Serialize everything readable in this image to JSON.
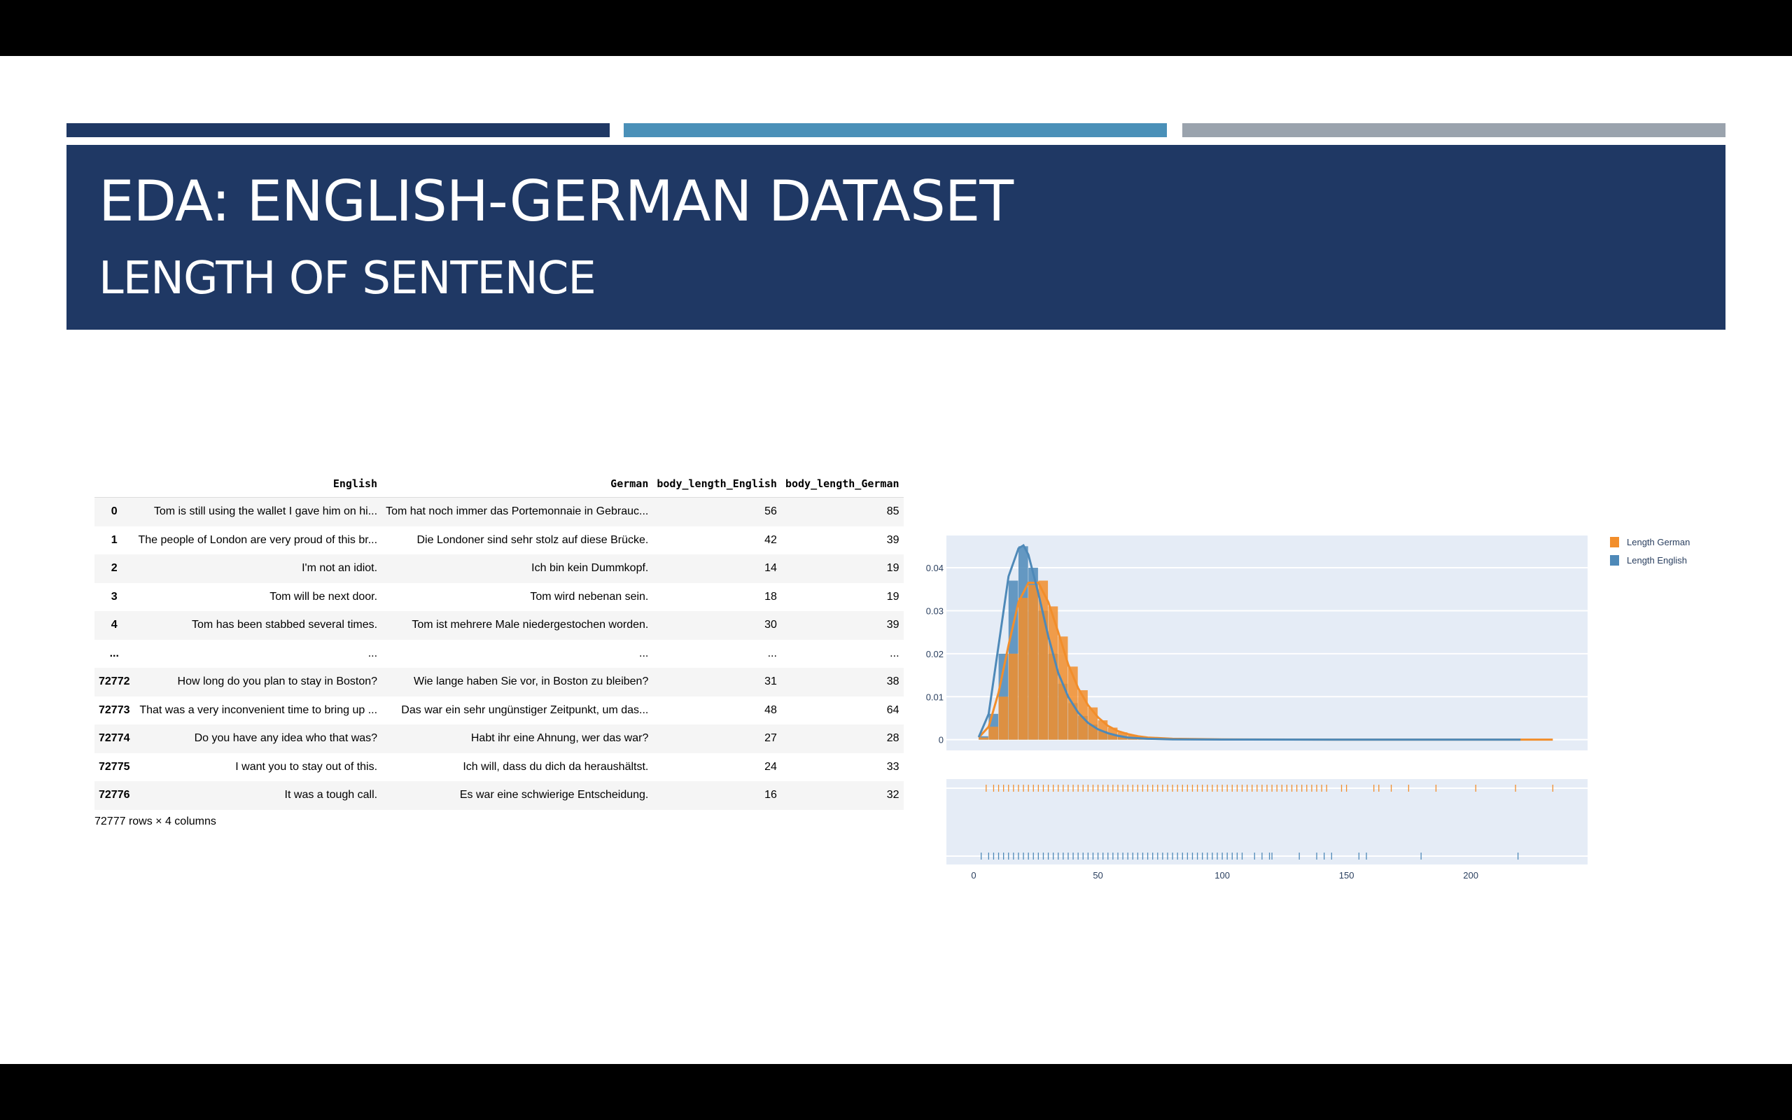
{
  "slide": {
    "title": "EDA: ENGLISH-GERMAN DATASET",
    "subtitle": "LENGTH OF SENTENCE"
  },
  "table": {
    "columns": [
      "English",
      "German",
      "body_length_English",
      "body_length_German"
    ],
    "rows": [
      {
        "index": "0",
        "English": "Tom is still using the wallet I gave him on hi...",
        "German": "Tom hat noch immer das Portemonnaie in Gebrauc...",
        "len_en": "56",
        "len_de": "85"
      },
      {
        "index": "1",
        "English": "The people of London are very proud of this br...",
        "German": "Die Londoner sind sehr stolz auf diese Brücke.",
        "len_en": "42",
        "len_de": "39"
      },
      {
        "index": "2",
        "English": "I'm not an idiot.",
        "German": "Ich bin kein Dummkopf.",
        "len_en": "14",
        "len_de": "19"
      },
      {
        "index": "3",
        "English": "Tom will be next door.",
        "German": "Tom wird nebenan sein.",
        "len_en": "18",
        "len_de": "19"
      },
      {
        "index": "4",
        "English": "Tom has been stabbed several times.",
        "German": "Tom ist mehrere Male niedergestochen worden.",
        "len_en": "30",
        "len_de": "39"
      },
      {
        "index": "...",
        "English": "...",
        "German": "...",
        "len_en": "...",
        "len_de": "..."
      },
      {
        "index": "72772",
        "English": "How long do you plan to stay in Boston?",
        "German": "Wie lange haben Sie vor, in Boston zu bleiben?",
        "len_en": "31",
        "len_de": "38"
      },
      {
        "index": "72773",
        "English": "That was a very inconvenient time to bring up ...",
        "German": "Das war ein sehr ungünstiger Zeitpunkt, um das...",
        "len_en": "48",
        "len_de": "64"
      },
      {
        "index": "72774",
        "English": "Do you have any idea who that was?",
        "German": "Habt ihr eine Ahnung, wer das war?",
        "len_en": "27",
        "len_de": "28"
      },
      {
        "index": "72775",
        "English": "I want you to stay out of this.",
        "German": "Ich will, dass du dich da heraushältst.",
        "len_en": "24",
        "len_de": "33"
      },
      {
        "index": "72776",
        "English": "It was a tough call.",
        "German": "Es war eine schwierige Entscheidung.",
        "len_en": "16",
        "len_de": "32"
      }
    ],
    "row_count": "72777 rows × 4 columns"
  },
  "chart_data": {
    "type": "histogram",
    "title": "",
    "xlabel": "",
    "ylabel": "",
    "xlim": [
      -11,
      247
    ],
    "ylim": [
      -0.0025,
      0.0475
    ],
    "x_ticks": [
      0,
      50,
      100,
      150,
      200
    ],
    "y_ticks": [
      0,
      0.01,
      0.02,
      0.03,
      0.04
    ],
    "y_tick_labels": [
      "0",
      "0.01",
      "0.02",
      "0.03",
      "0.04"
    ],
    "grid": true,
    "legend_position": "top-right",
    "bin_width": 4,
    "series": [
      {
        "name": "Length German",
        "color": "#f28e2b",
        "bins_start": [
          2,
          6,
          10,
          14,
          18,
          22,
          26,
          30,
          34,
          38,
          42,
          46,
          50,
          54,
          58,
          62,
          66,
          70,
          74
        ],
        "density": [
          0.0005,
          0.003,
          0.01,
          0.02,
          0.033,
          0.036,
          0.037,
          0.031,
          0.024,
          0.017,
          0.0115,
          0.0075,
          0.0045,
          0.0028,
          0.0017,
          0.0011,
          0.0007,
          0.0004,
          0.0002
        ],
        "kde_x": [
          2,
          6,
          10,
          14,
          18,
          22,
          26,
          30,
          34,
          38,
          42,
          46,
          50,
          54,
          58,
          62,
          66,
          70,
          80,
          100,
          150,
          200,
          233
        ],
        "kde_y": [
          0.0005,
          0.003,
          0.011,
          0.022,
          0.032,
          0.0365,
          0.0365,
          0.032,
          0.025,
          0.0175,
          0.012,
          0.008,
          0.0052,
          0.0032,
          0.002,
          0.0013,
          0.0008,
          0.0005,
          0.0002,
          5e-05,
          1e-05,
          0,
          0
        ],
        "rug": [
          5,
          8,
          10,
          12,
          14,
          16,
          18,
          20,
          22,
          24,
          26,
          28,
          30,
          32,
          34,
          36,
          38,
          40,
          42,
          44,
          46,
          48,
          50,
          52,
          54,
          56,
          58,
          60,
          62,
          64,
          66,
          68,
          70,
          72,
          74,
          76,
          78,
          80,
          82,
          84,
          86,
          88,
          90,
          92,
          94,
          96,
          98,
          100,
          102,
          104,
          106,
          108,
          110,
          112,
          114,
          116,
          118,
          120,
          122,
          124,
          126,
          128,
          130,
          132,
          134,
          136,
          138,
          140,
          142,
          148,
          150,
          161,
          163,
          168,
          175,
          186,
          202,
          218,
          233
        ]
      },
      {
        "name": "Length English",
        "color": "#4e89b8",
        "bins_start": [
          2,
          6,
          10,
          14,
          18,
          22,
          26,
          30,
          34,
          38,
          42,
          46,
          50,
          54,
          58,
          62,
          66
        ],
        "density": [
          0.0008,
          0.006,
          0.02,
          0.037,
          0.045,
          0.04,
          0.03,
          0.02,
          0.013,
          0.0085,
          0.0055,
          0.0035,
          0.002,
          0.0012,
          0.0007,
          0.0004,
          0.0002
        ],
        "kde_x": [
          2,
          6,
          10,
          14,
          18,
          20,
          22,
          26,
          30,
          34,
          38,
          42,
          46,
          50,
          54,
          58,
          62,
          70,
          80,
          100,
          150,
          200,
          220
        ],
        "kde_y": [
          0.0006,
          0.006,
          0.022,
          0.038,
          0.0445,
          0.0452,
          0.043,
          0.034,
          0.024,
          0.0155,
          0.01,
          0.0063,
          0.0039,
          0.0024,
          0.0015,
          0.0009,
          0.0005,
          0.0002,
          8e-05,
          2e-05,
          0,
          0,
          0
        ],
        "rug": [
          3,
          6,
          8,
          10,
          12,
          14,
          16,
          18,
          20,
          22,
          24,
          26,
          28,
          30,
          32,
          34,
          36,
          38,
          40,
          42,
          44,
          46,
          48,
          50,
          52,
          54,
          56,
          58,
          60,
          62,
          64,
          66,
          68,
          70,
          72,
          74,
          76,
          78,
          80,
          82,
          84,
          86,
          88,
          90,
          92,
          94,
          96,
          98,
          100,
          102,
          104,
          106,
          108,
          113,
          116,
          119,
          120,
          131,
          138,
          141,
          144,
          155,
          158,
          180,
          219
        ]
      }
    ]
  }
}
